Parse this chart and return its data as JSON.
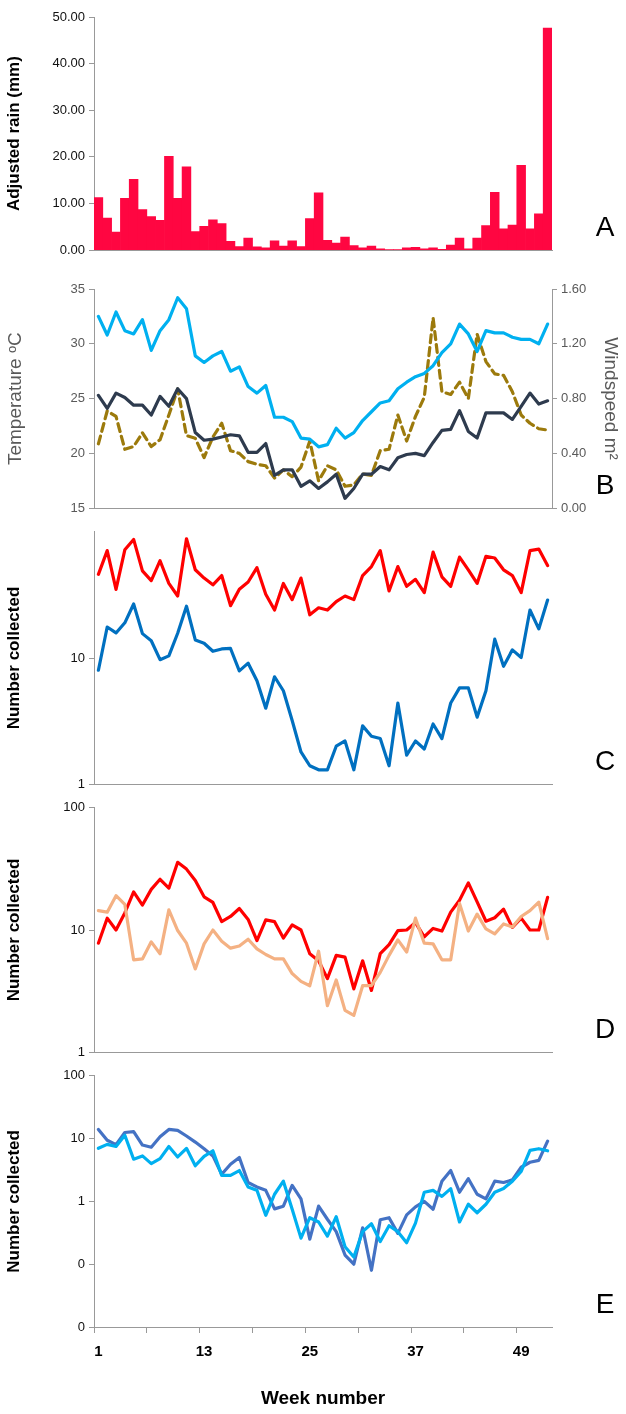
{
  "chart_data": [
    {
      "type": "bar",
      "ylabel": "Adjusted rain (mm)",
      "annotations": [
        "A"
      ],
      "color": "#ff0641",
      "categories": [
        null,
        null,
        null,
        null,
        null,
        null,
        null,
        null,
        null,
        null,
        null,
        null,
        null,
        null,
        null,
        null,
        null,
        null,
        null,
        null,
        null,
        null,
        null,
        null,
        null,
        null,
        null,
        null,
        null,
        null,
        null,
        null,
        null,
        null,
        null,
        null,
        null,
        null,
        null,
        null,
        null,
        null,
        null,
        null,
        null,
        null,
        null,
        null,
        null,
        null,
        null,
        null
      ],
      "values": [
        11.3,
        6.9,
        3.9,
        11.1,
        15.2,
        8.7,
        7.2,
        6.4,
        20.1,
        11.1,
        17.9,
        4.0,
        5.1,
        6.5,
        5.7,
        1.9,
        0.8,
        2.6,
        0.7,
        0.5,
        2.0,
        0.9,
        2.0,
        0.8,
        6.8,
        12.3,
        2.1,
        1.5,
        2.8,
        1.0,
        0.5,
        0.9,
        0.3,
        0.1,
        0.1,
        0.5,
        0.6,
        0.3,
        0.5,
        0.2,
        1.1,
        2.6,
        0.3,
        2.6,
        5.3,
        12.4,
        4.6,
        5.4,
        18.2,
        4.6,
        7.8,
        47.6
      ],
      "ylim": [
        0,
        50
      ],
      "yticks": [
        {
          "value": 0,
          "label": "0.00"
        },
        {
          "value": 10,
          "label": "10.00"
        },
        {
          "value": 20,
          "label": "20.00"
        },
        {
          "value": 30,
          "label": "30.00"
        },
        {
          "value": 40,
          "label": "40.00"
        },
        {
          "value": 50,
          "label": "50.00"
        }
      ]
    },
    {
      "type": "line",
      "ylabel": "Temperature ᵒC",
      "y2label": "Windspeed m²",
      "annotations": [
        "B"
      ],
      "categories": [
        null,
        null,
        null,
        null,
        null,
        null,
        null,
        null,
        null,
        null,
        null,
        null,
        null,
        null,
        null,
        null,
        null,
        null,
        null,
        null,
        null,
        null,
        null,
        null,
        null,
        null,
        null,
        null,
        null,
        null,
        null,
        null,
        null,
        null,
        null,
        null,
        null,
        null,
        null,
        null,
        null,
        null,
        null,
        null,
        null,
        null,
        null,
        null,
        null,
        null,
        null,
        null
      ],
      "series": [
        {
          "color": "#00b0f0",
          "values": [
            32.5,
            30.8,
            32.9,
            31.2,
            30.9,
            32.2,
            29.4,
            31.2,
            32.2,
            34.2,
            33.2,
            28.9,
            28.3,
            28.9,
            29.3,
            27.5,
            27.9,
            26.1,
            25.5,
            26.2,
            23.3,
            23.3,
            22.9,
            21.4,
            21.3,
            20.6,
            20.8,
            22.3,
            21.4,
            21.9,
            23.0,
            23.8,
            24.6,
            24.8,
            25.9,
            26.5,
            27.0,
            27.3,
            28.0,
            29.2,
            30.0,
            31.8,
            30.9,
            29.3,
            31.2,
            31.0,
            31.0,
            30.6,
            30.4,
            30.4,
            30.0,
            31.8
          ]
        },
        {
          "color": "#2e3b4e",
          "values": [
            25.3,
            24.1,
            25.5,
            25.1,
            24.4,
            24.4,
            23.5,
            25.2,
            24.3,
            25.9,
            25.0,
            21.9,
            21.2,
            21.3,
            21.5,
            21.7,
            21.6,
            20.1,
            20.1,
            20.9,
            18.0,
            18.5,
            18.5,
            17.0,
            17.5,
            16.8,
            17.4,
            18.1,
            15.9,
            16.8,
            18.1,
            18.1,
            18.8,
            18.5,
            19.6,
            19.9,
            20.0,
            19.8,
            21.0,
            22.1,
            22.2,
            23.9,
            22.0,
            21.4,
            23.7,
            23.7,
            23.7,
            23.1,
            24.3,
            25.5,
            24.5,
            24.8
          ]
        },
        {
          "color": "#9c7a0c",
          "axis": "y2",
          "line_style": "dashed",
          "values": [
            0.47,
            0.71,
            0.67,
            0.43,
            0.45,
            0.55,
            0.45,
            0.5,
            0.68,
            0.87,
            0.53,
            0.51,
            0.37,
            0.52,
            0.62,
            0.42,
            0.4,
            0.34,
            0.32,
            0.31,
            0.22,
            0.28,
            0.23,
            0.3,
            0.49,
            0.2,
            0.31,
            0.28,
            0.16,
            0.17,
            0.25,
            0.24,
            0.42,
            0.43,
            0.68,
            0.49,
            0.67,
            0.81,
            1.39,
            0.85,
            0.83,
            0.92,
            0.8,
            1.27,
            1.07,
            0.98,
            0.97,
            0.85,
            0.68,
            0.62,
            0.58,
            0.57
          ]
        }
      ],
      "ylim": [
        15,
        35
      ],
      "yticks": [
        15,
        20,
        25,
        30,
        35
      ],
      "y2lim": [
        0,
        1.6
      ],
      "y2ticks": [
        {
          "value": 0,
          "label": "0.00"
        },
        {
          "value": 0.4,
          "label": "0.40"
        },
        {
          "value": 0.8,
          "label": "0.80"
        },
        {
          "value": 1.2,
          "label": "1.20"
        },
        {
          "value": 1.6,
          "label": "1.60"
        }
      ]
    },
    {
      "type": "line",
      "ylabel": "Number collected",
      "annotations": [
        "C"
      ],
      "log": true,
      "categories": [
        null,
        null,
        null,
        null,
        null,
        null,
        null,
        null,
        null,
        null,
        null,
        null,
        null,
        null,
        null,
        null,
        null,
        null,
        null,
        null,
        null,
        null,
        null,
        null,
        null,
        null,
        null,
        null,
        null,
        null,
        null,
        null,
        null,
        null,
        null,
        null,
        null,
        null,
        null,
        null,
        null,
        null,
        null,
        null,
        null,
        null,
        null,
        null,
        null,
        null,
        null,
        null
      ],
      "series": [
        {
          "color": "#ff0000",
          "values": [
            46,
            71,
            35,
            72,
            87,
            49,
            41,
            59,
            39,
            31,
            88,
            50,
            43,
            38,
            45,
            26,
            35,
            40,
            52,
            32,
            24,
            39,
            29,
            43,
            22,
            25,
            24,
            28,
            31,
            29,
            45,
            53,
            71,
            34,
            53,
            37,
            42,
            33,
            69,
            44,
            37,
            63,
            50,
            39,
            64,
            62,
            50,
            45,
            33,
            71,
            73,
            54
          ]
        },
        {
          "color": "#0070c0",
          "values": [
            8.0,
            17.6,
            15.8,
            19,
            26.8,
            15.6,
            13.7,
            9.7,
            10.4,
            15.7,
            25.7,
            13.9,
            13.1,
            11.3,
            11.8,
            11.9,
            7.9,
            9.1,
            6.6,
            4.0,
            7.1,
            5.5,
            3.2,
            1.8,
            1.4,
            1.3,
            1.3,
            2.0,
            2.2,
            1.3,
            2.9,
            2.4,
            2.3,
            1.4,
            4.4,
            1.7,
            2.2,
            1.9,
            3.0,
            2.3,
            4.4,
            5.8,
            5.8,
            3.4,
            5.5,
            14.1,
            8.6,
            11.6,
            10.1,
            24,
            17,
            28.8
          ]
        }
      ],
      "ylim": [
        1,
        100
      ],
      "yticks": [
        1,
        10
      ]
    },
    {
      "type": "line",
      "ylabel": "Number collected",
      "annotations": [
        "D"
      ],
      "log": true,
      "categories": [
        null,
        null,
        null,
        null,
        null,
        null,
        null,
        null,
        null,
        null,
        null,
        null,
        null,
        null,
        null,
        null,
        null,
        null,
        null,
        null,
        null,
        null,
        null,
        null,
        null,
        null,
        null,
        null,
        null,
        null,
        null,
        null,
        null,
        null,
        null,
        null,
        null,
        null,
        null,
        null,
        null,
        null,
        null,
        null,
        null,
        null,
        null,
        null,
        null,
        null,
        null,
        null
      ],
      "series": [
        {
          "color": "#f4b183",
          "values": [
            14.4,
            14,
            19.1,
            16.2,
            5.7,
            5.8,
            8.0,
            6.4,
            14.6,
            9.9,
            7.8,
            4.8,
            7.7,
            10,
            8.1,
            7.1,
            7.4,
            8.4,
            7.0,
            6.3,
            5.8,
            5.8,
            4.4,
            3.8,
            3.5,
            6.7,
            2.4,
            3.9,
            2.2,
            2.0,
            3.5,
            3.5,
            4.5,
            6.2,
            8.3,
            6.6,
            12.5,
            7.8,
            7.7,
            5.7,
            5.7,
            16.5,
            9.8,
            13.5,
            10.2,
            9.3,
            11.2,
            10.6,
            12.9,
            14.4,
            16.9,
            8.5
          ]
        },
        {
          "color": "#ff0000",
          "values": [
            7.8,
            12.5,
            10,
            13.8,
            20.5,
            16,
            21.5,
            26,
            22,
            35.8,
            31.5,
            25.4,
            18.7,
            16.8,
            11.7,
            12.9,
            15,
            12.2,
            8.2,
            12.1,
            11.7,
            8.6,
            11,
            10,
            6.4,
            5.6,
            4.0,
            6.2,
            6.0,
            3.3,
            5.6,
            3.2,
            6.4,
            7.6,
            9.9,
            10,
            11.5,
            8.8,
            10.3,
            9.8,
            14,
            17.5,
            24.3,
            17,
            11.8,
            12.6,
            14.8,
            10.5,
            12.5,
            10,
            10,
            18.5
          ]
        }
      ],
      "ylim": [
        1,
        100
      ],
      "yticks": [
        1,
        10,
        100
      ]
    },
    {
      "type": "line",
      "ylabel": "Number collected",
      "xlabel": "Week number",
      "annotations": [
        "E"
      ],
      "log": true,
      "categories": [
        "1",
        null,
        null,
        null,
        null,
        null,
        null,
        null,
        null,
        null,
        null,
        null,
        "13",
        null,
        null,
        null,
        null,
        null,
        null,
        null,
        null,
        null,
        null,
        null,
        "25",
        null,
        null,
        null,
        null,
        null,
        null,
        null,
        null,
        null,
        null,
        null,
        "37",
        null,
        null,
        null,
        null,
        null,
        null,
        null,
        null,
        null,
        null,
        null,
        "49",
        null,
        null,
        null
      ],
      "series": [
        {
          "color": "#00b0f0",
          "values": [
            7.0,
            8.1,
            7.5,
            11.3,
            4.7,
            5.3,
            4.0,
            4.8,
            7.5,
            5.1,
            7.0,
            3.7,
            5.2,
            6.4,
            2.6,
            2.6,
            3.1,
            1.7,
            1.5,
            0.6,
            1.3,
            2.1,
            0.75,
            0.26,
            0.55,
            0.47,
            0.28,
            0.57,
            0.19,
            0.13,
            0.33,
            0.44,
            0.23,
            0.41,
            0.33,
            0.22,
            0.45,
            1.4,
            1.5,
            1.2,
            1.6,
            0.47,
            0.9,
            0.66,
            0.9,
            1.4,
            1.6,
            2.1,
            3.0,
            6.5,
            6.9,
            6.4
          ]
        },
        {
          "color": "#4472c4",
          "values": [
            14,
            9.4,
            8.0,
            12.5,
            12.9,
            7.9,
            7.3,
            10.7,
            14,
            13.5,
            11,
            8.8,
            6.9,
            5.3,
            2.7,
            3.9,
            5.0,
            2.0,
            1.7,
            1.5,
            0.76,
            0.84,
            1.8,
            1.1,
            0.25,
            0.84,
            0.52,
            0.33,
            0.14,
            0.1,
            0.38,
            0.08,
            0.51,
            0.55,
            0.31,
            0.61,
            0.82,
            1.0,
            0.75,
            2.1,
            3.1,
            1.4,
            2.3,
            1.3,
            1.1,
            2.1,
            2.0,
            2.2,
            3.5,
            4.2,
            4.5,
            9.1
          ]
        }
      ],
      "ylim": [
        0.01,
        100
      ],
      "yticks": [
        {
          "value": 0.01,
          "label": "0"
        },
        {
          "value": 0.1,
          "label": "0"
        },
        1,
        10,
        100
      ]
    }
  ]
}
